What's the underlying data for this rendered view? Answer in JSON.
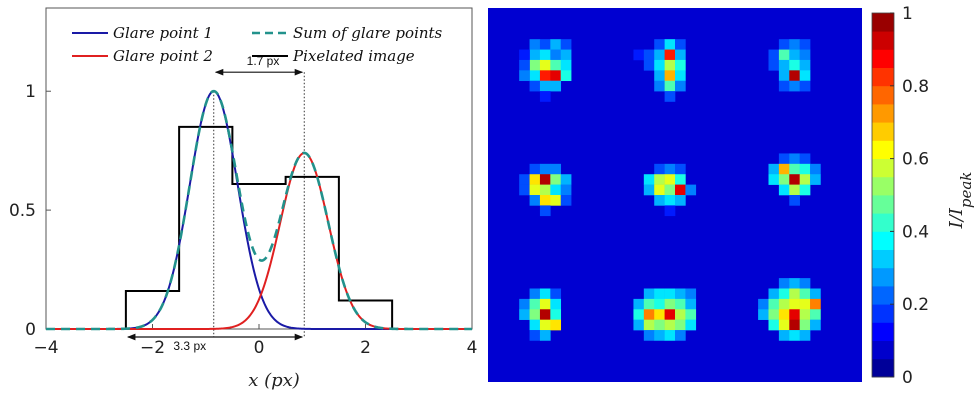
{
  "chart_data": [
    {
      "type": "line",
      "xlabel": "x (px)",
      "ylabel": "",
      "xlim": [
        -4,
        4
      ],
      "ylim": [
        0,
        1.35
      ],
      "xticks": [
        -4,
        -2,
        0,
        2,
        4
      ],
      "yticks": [
        0,
        0.5,
        1
      ],
      "grid": false,
      "legend": "top",
      "series": [
        {
          "name": "Glare point 1",
          "color": "#1a1aa6",
          "style": "solid",
          "shape": "gaussian",
          "center": -0.85,
          "sigma": 0.45,
          "amplitude": 1.0
        },
        {
          "name": "Glare point 2",
          "color": "#e02020",
          "style": "solid",
          "shape": "gaussian",
          "center": 0.85,
          "sigma": 0.45,
          "amplitude": 0.74
        },
        {
          "name": "Sum of glare points",
          "color": "#22928c",
          "style": "dashed",
          "shape": "sum"
        },
        {
          "name": "Pixelated image",
          "color": "#000000",
          "style": "solid",
          "shape": "step",
          "x": [
            -4,
            -2.5,
            -2.5,
            -1.5,
            -1.5,
            -0.5,
            -0.5,
            0.5,
            0.5,
            1.5,
            1.5,
            2.5,
            2.5,
            4
          ],
          "y": [
            0,
            0,
            0.16,
            0.16,
            0.85,
            0.85,
            0.61,
            0.61,
            0.64,
            0.64,
            0.12,
            0.12,
            0,
            0
          ]
        }
      ],
      "annotations": [
        {
          "text": "1.7 px",
          "from": -0.85,
          "to": 0.85,
          "y": 1.08
        },
        {
          "text": "3.3 px",
          "from": -2.5,
          "to": 0.85,
          "y": -0.04
        }
      ]
    },
    {
      "type": "heatmap",
      "colorbar_label": "I/I_peak",
      "colorbar_ticks": [
        0,
        0.2,
        0.4,
        0.6,
        0.8,
        1
      ],
      "colormap": "jet",
      "grid_cells": 36,
      "spots": [
        {
          "cx": 5.5,
          "cy": 5.0,
          "cells": [
            [
              4,
              3,
              0.25
            ],
            [
              5,
              3,
              0.2
            ],
            [
              6,
              3,
              0.3
            ],
            [
              7,
              3,
              0.2
            ],
            [
              4,
              4,
              0.3
            ],
            [
              5,
              4,
              0.35
            ],
            [
              6,
              4,
              0.25
            ],
            [
              7,
              4,
              0.3
            ],
            [
              3,
              4,
              0.15
            ],
            [
              4,
              5,
              0.5
            ],
            [
              5,
              5,
              0.6
            ],
            [
              6,
              5,
              0.45
            ],
            [
              7,
              5,
              0.35
            ],
            [
              3,
              5,
              0.2
            ],
            [
              4,
              6,
              0.35
            ],
            [
              5,
              6,
              0.85
            ],
            [
              6,
              6,
              0.9
            ],
            [
              7,
              6,
              0.4
            ],
            [
              3,
              6,
              0.25
            ],
            [
              4,
              7,
              0.2
            ],
            [
              5,
              7,
              0.3
            ],
            [
              6,
              7,
              0.3
            ],
            [
              5,
              8,
              0.15
            ]
          ]
        },
        {
          "cx": 17.5,
          "cy": 5.0,
          "cells": [
            [
              16,
              3,
              0.2
            ],
            [
              17,
              3,
              0.35
            ],
            [
              18,
              3,
              0.2
            ],
            [
              14,
              4,
              0.15
            ],
            [
              15,
              4,
              0.2
            ],
            [
              16,
              4,
              0.3
            ],
            [
              17,
              4,
              0.85
            ],
            [
              18,
              4,
              0.3
            ],
            [
              15,
              5,
              0.2
            ],
            [
              16,
              5,
              0.35
            ],
            [
              17,
              5,
              0.55
            ],
            [
              18,
              5,
              0.4
            ],
            [
              16,
              6,
              0.3
            ],
            [
              17,
              6,
              0.7
            ],
            [
              18,
              6,
              0.35
            ],
            [
              16,
              7,
              0.25
            ],
            [
              17,
              7,
              0.45
            ],
            [
              18,
              7,
              0.25
            ],
            [
              17,
              8,
              0.2
            ]
          ]
        },
        {
          "cx": 29.5,
          "cy": 5.0,
          "cells": [
            [
              28,
              3,
              0.2
            ],
            [
              29,
              3,
              0.25
            ],
            [
              30,
              3,
              0.2
            ],
            [
              27,
              4,
              0.2
            ],
            [
              28,
              4,
              0.45
            ],
            [
              29,
              4,
              0.3
            ],
            [
              30,
              4,
              0.25
            ],
            [
              27,
              5,
              0.2
            ],
            [
              28,
              5,
              0.3
            ],
            [
              29,
              5,
              0.4
            ],
            [
              30,
              5,
              0.3
            ],
            [
              28,
              6,
              0.3
            ],
            [
              29,
              6,
              0.95
            ],
            [
              30,
              6,
              0.35
            ],
            [
              28,
              7,
              0.2
            ],
            [
              29,
              7,
              0.25
            ],
            [
              30,
              7,
              0.2
            ]
          ]
        },
        {
          "cx": 5.5,
          "cy": 17.0,
          "cells": [
            [
              4,
              15,
              0.2
            ],
            [
              5,
              15,
              0.25
            ],
            [
              6,
              15,
              0.25
            ],
            [
              3,
              16,
              0.2
            ],
            [
              4,
              16,
              0.65
            ],
            [
              5,
              16,
              0.95
            ],
            [
              6,
              16,
              0.5
            ],
            [
              7,
              16,
              0.3
            ],
            [
              3,
              17,
              0.2
            ],
            [
              4,
              17,
              0.6
            ],
            [
              5,
              17,
              0.55
            ],
            [
              6,
              17,
              0.35
            ],
            [
              7,
              17,
              0.25
            ],
            [
              4,
              18,
              0.25
            ],
            [
              5,
              18,
              0.65
            ],
            [
              6,
              18,
              0.6
            ],
            [
              7,
              18,
              0.2
            ],
            [
              5,
              19,
              0.2
            ]
          ]
        },
        {
          "cx": 17.5,
          "cy": 17.0,
          "cells": [
            [
              16,
              15,
              0.2
            ],
            [
              17,
              15,
              0.25
            ],
            [
              18,
              15,
              0.2
            ],
            [
              15,
              16,
              0.35
            ],
            [
              16,
              16,
              0.55
            ],
            [
              17,
              16,
              0.6
            ],
            [
              18,
              16,
              0.4
            ],
            [
              15,
              17,
              0.3
            ],
            [
              16,
              17,
              0.6
            ],
            [
              17,
              17,
              0.5
            ],
            [
              18,
              17,
              0.9
            ],
            [
              19,
              17,
              0.25
            ],
            [
              16,
              18,
              0.3
            ],
            [
              17,
              18,
              0.35
            ],
            [
              18,
              18,
              0.3
            ],
            [
              17,
              19,
              0.15
            ]
          ]
        },
        {
          "cx": 29.5,
          "cy": 17.0,
          "cells": [
            [
              28,
              14,
              0.2
            ],
            [
              29,
              14,
              0.25
            ],
            [
              30,
              14,
              0.2
            ],
            [
              27,
              15,
              0.3
            ],
            [
              28,
              15,
              0.7
            ],
            [
              29,
              15,
              0.45
            ],
            [
              30,
              15,
              0.4
            ],
            [
              31,
              15,
              0.25
            ],
            [
              27,
              16,
              0.35
            ],
            [
              28,
              16,
              0.5
            ],
            [
              29,
              16,
              0.95
            ],
            [
              30,
              16,
              0.55
            ],
            [
              31,
              16,
              0.3
            ],
            [
              28,
              17,
              0.35
            ],
            [
              29,
              17,
              0.55
            ],
            [
              30,
              17,
              0.4
            ],
            [
              29,
              18,
              0.2
            ]
          ]
        },
        {
          "cx": 5.5,
          "cy": 29.0,
          "cells": [
            [
              4,
              27,
              0.25
            ],
            [
              5,
              27,
              0.35
            ],
            [
              6,
              27,
              0.2
            ],
            [
              3,
              28,
              0.25
            ],
            [
              4,
              28,
              0.45
            ],
            [
              5,
              28,
              0.6
            ],
            [
              6,
              28,
              0.35
            ],
            [
              3,
              29,
              0.3
            ],
            [
              4,
              29,
              0.5
            ],
            [
              5,
              29,
              0.95
            ],
            [
              6,
              29,
              0.4
            ],
            [
              4,
              30,
              0.35
            ],
            [
              5,
              30,
              0.6
            ],
            [
              6,
              30,
              0.65
            ],
            [
              4,
              31,
              0.2
            ],
            [
              5,
              31,
              0.3
            ]
          ]
        },
        {
          "cx": 17.5,
          "cy": 29.0,
          "cells": [
            [
              15,
              27,
              0.3
            ],
            [
              16,
              27,
              0.35
            ],
            [
              17,
              27,
              0.35
            ],
            [
              18,
              27,
              0.3
            ],
            [
              19,
              27,
              0.25
            ],
            [
              14,
              28,
              0.3
            ],
            [
              15,
              28,
              0.45
            ],
            [
              16,
              28,
              0.4
            ],
            [
              17,
              28,
              0.5
            ],
            [
              18,
              28,
              0.45
            ],
            [
              19,
              28,
              0.3
            ],
            [
              14,
              29,
              0.4
            ],
            [
              15,
              29,
              0.75
            ],
            [
              16,
              29,
              0.65
            ],
            [
              17,
              29,
              0.9
            ],
            [
              18,
              29,
              0.55
            ],
            [
              19,
              29,
              0.45
            ],
            [
              14,
              30,
              0.3
            ],
            [
              15,
              30,
              0.55
            ],
            [
              16,
              30,
              0.5
            ],
            [
              17,
              30,
              0.55
            ],
            [
              18,
              30,
              0.5
            ],
            [
              19,
              30,
              0.35
            ],
            [
              15,
              31,
              0.25
            ],
            [
              16,
              31,
              0.3
            ],
            [
              17,
              31,
              0.35
            ],
            [
              18,
              31,
              0.25
            ]
          ]
        },
        {
          "cx": 29.5,
          "cy": 29.0,
          "cells": [
            [
              28,
              26,
              0.25
            ],
            [
              29,
              26,
              0.3
            ],
            [
              30,
              26,
              0.25
            ],
            [
              27,
              27,
              0.3
            ],
            [
              28,
              27,
              0.4
            ],
            [
              29,
              27,
              0.55
            ],
            [
              30,
              27,
              0.45
            ],
            [
              31,
              27,
              0.3
            ],
            [
              26,
              28,
              0.25
            ],
            [
              27,
              28,
              0.45
            ],
            [
              28,
              28,
              0.55
            ],
            [
              29,
              28,
              0.6
            ],
            [
              30,
              28,
              0.6
            ],
            [
              31,
              28,
              0.75
            ],
            [
              26,
              29,
              0.3
            ],
            [
              27,
              29,
              0.5
            ],
            [
              28,
              29,
              0.65
            ],
            [
              29,
              29,
              0.9
            ],
            [
              30,
              29,
              0.55
            ],
            [
              31,
              29,
              0.45
            ],
            [
              27,
              30,
              0.4
            ],
            [
              28,
              30,
              0.6
            ],
            [
              29,
              30,
              0.95
            ],
            [
              30,
              30,
              0.5
            ],
            [
              31,
              30,
              0.3
            ],
            [
              28,
              31,
              0.3
            ],
            [
              29,
              31,
              0.35
            ],
            [
              30,
              31,
              0.3
            ]
          ]
        }
      ]
    }
  ]
}
